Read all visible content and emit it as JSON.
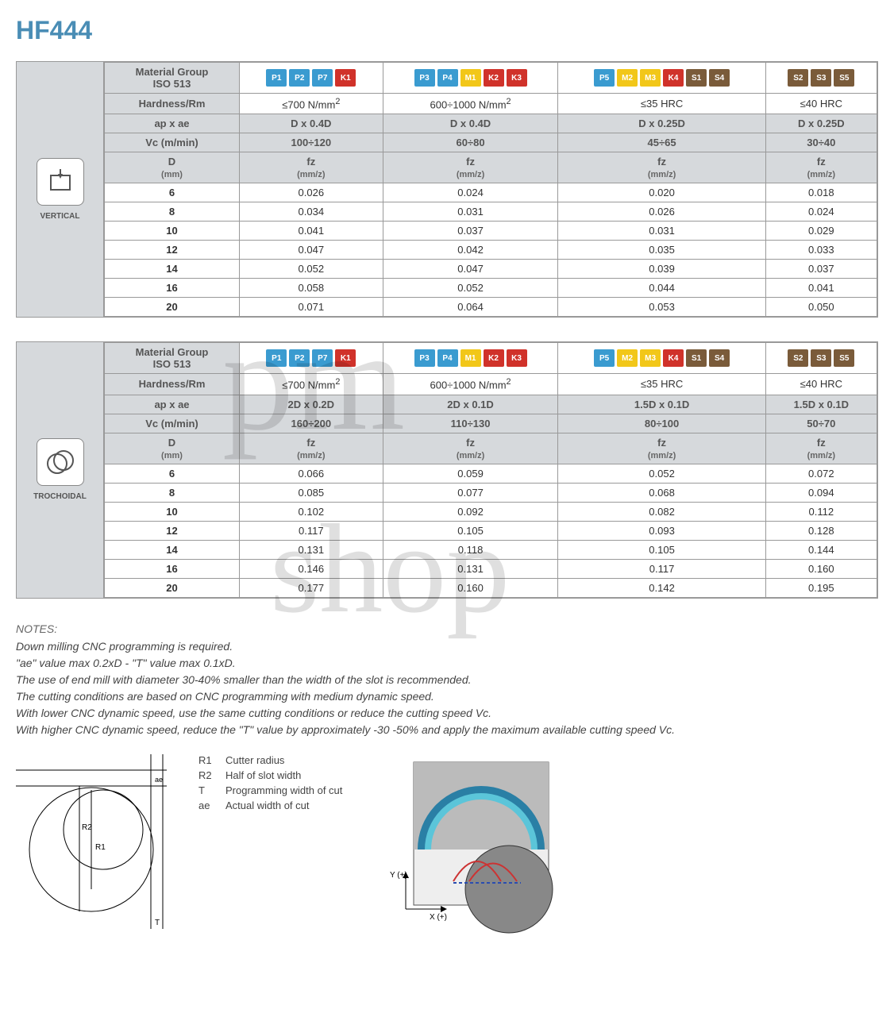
{
  "title": "HF444",
  "chip_colors": {
    "P": "#3a9bd0",
    "M": "#f2c719",
    "K": "#d0322a",
    "S": "#7a5b3a"
  },
  "tables": [
    {
      "mode": "VERTICAL",
      "headers": {
        "material_group": "Material Group ISO 513",
        "hardness": "Hardness/Rm",
        "apae": "ap x ae",
        "vc": "Vc (m/min)",
        "d": "D",
        "d_unit": "(mm)",
        "fz": "fz",
        "fz_unit": "(mm/z)"
      },
      "columns": [
        {
          "chips": [
            "P1",
            "P2",
            "P7",
            "K1"
          ],
          "hardness": "≤700 N/mm²",
          "apae": "D x 0.4D",
          "vc": "100÷120"
        },
        {
          "chips": [
            "P3",
            "P4",
            "M1",
            "K2",
            "K3"
          ],
          "hardness": "600÷1000 N/mm²",
          "apae": "D x 0.4D",
          "vc": "60÷80"
        },
        {
          "chips": [
            "P5",
            "M2",
            "M3",
            "K4",
            "S1",
            "S4"
          ],
          "hardness": "≤35 HRC",
          "apae": "D x 0.25D",
          "vc": "45÷65"
        },
        {
          "chips": [
            "S2",
            "S3",
            "S5"
          ],
          "hardness": "≤40 HRC",
          "apae": "D x 0.25D",
          "vc": "30÷40"
        }
      ],
      "rows": [
        {
          "d": "6",
          "v": [
            "0.026",
            "0.024",
            "0.020",
            "0.018"
          ]
        },
        {
          "d": "8",
          "v": [
            "0.034",
            "0.031",
            "0.026",
            "0.024"
          ]
        },
        {
          "d": "10",
          "v": [
            "0.041",
            "0.037",
            "0.031",
            "0.029"
          ]
        },
        {
          "d": "12",
          "v": [
            "0.047",
            "0.042",
            "0.035",
            "0.033"
          ]
        },
        {
          "d": "14",
          "v": [
            "0.052",
            "0.047",
            "0.039",
            "0.037"
          ]
        },
        {
          "d": "16",
          "v": [
            "0.058",
            "0.052",
            "0.044",
            "0.041"
          ]
        },
        {
          "d": "20",
          "v": [
            "0.071",
            "0.064",
            "0.053",
            "0.050"
          ]
        }
      ]
    },
    {
      "mode": "TROCHOIDAL",
      "headers": {
        "material_group": "Material Group ISO 513",
        "hardness": "Hardness/Rm",
        "apae": "ap x ae",
        "vc": "Vc (m/min)",
        "d": "D",
        "d_unit": "(mm)",
        "fz": "fz",
        "fz_unit": "(mm/z)"
      },
      "columns": [
        {
          "chips": [
            "P1",
            "P2",
            "P7",
            "K1"
          ],
          "hardness": "≤700 N/mm²",
          "apae": "2D x 0.2D",
          "vc": "160÷200"
        },
        {
          "chips": [
            "P3",
            "P4",
            "M1",
            "K2",
            "K3"
          ],
          "hardness": "600÷1000 N/mm²",
          "apae": "2D x 0.1D",
          "vc": "110÷130"
        },
        {
          "chips": [
            "P5",
            "M2",
            "M3",
            "K4",
            "S1",
            "S4"
          ],
          "hardness": "≤35 HRC",
          "apae": "1.5D x 0.1D",
          "vc": "80÷100"
        },
        {
          "chips": [
            "S2",
            "S3",
            "S5"
          ],
          "hardness": "≤40 HRC",
          "apae": "1.5D x 0.1D",
          "vc": "50÷70"
        }
      ],
      "rows": [
        {
          "d": "6",
          "v": [
            "0.066",
            "0.059",
            "0.052",
            "0.072"
          ]
        },
        {
          "d": "8",
          "v": [
            "0.085",
            "0.077",
            "0.068",
            "0.094"
          ]
        },
        {
          "d": "10",
          "v": [
            "0.102",
            "0.092",
            "0.082",
            "0.112"
          ]
        },
        {
          "d": "12",
          "v": [
            "0.117",
            "0.105",
            "0.093",
            "0.128"
          ]
        },
        {
          "d": "14",
          "v": [
            "0.131",
            "0.118",
            "0.105",
            "0.144"
          ]
        },
        {
          "d": "16",
          "v": [
            "0.146",
            "0.131",
            "0.117",
            "0.160"
          ]
        },
        {
          "d": "20",
          "v": [
            "0.177",
            "0.160",
            "0.142",
            "0.195"
          ]
        }
      ]
    }
  ],
  "notes": {
    "title": "NOTES:",
    "lines": [
      "Down milling CNC programming is required.",
      "\"ae\" value max 0.2xD - \"T\" value max 0.1xD.",
      "The use of end mill with diameter 30-40% smaller than the width of the slot is recommended.",
      "The cutting conditions are based on CNC programming with medium dynamic speed.",
      "With lower CNC dynamic speed, use the same cutting conditions or reduce the cutting speed Vc.",
      "With higher CNC dynamic speed, reduce the \"T\" value by approximately -30 -50% and apply the maximum available cutting speed Vc."
    ]
  },
  "legend": [
    {
      "k": "R1",
      "t": "Cutter radius"
    },
    {
      "k": "R2",
      "t": "Half of slot width"
    },
    {
      "k": "T",
      "t": "Programming width of cut"
    },
    {
      "k": "ae",
      "t": "Actual width of cut"
    }
  ],
  "axes": {
    "x": "X (+)",
    "y": "Y (+)"
  }
}
